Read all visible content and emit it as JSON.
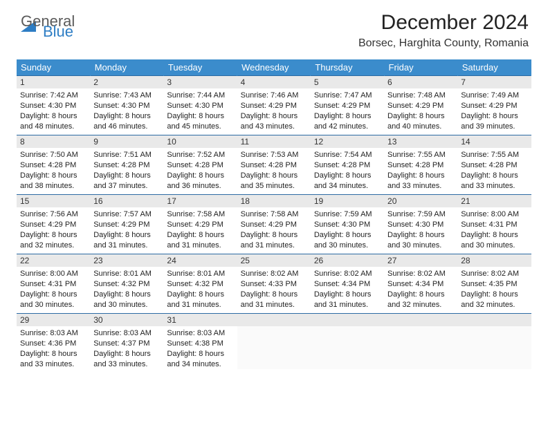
{
  "brand": {
    "line1": "General",
    "line2": "Blue"
  },
  "title": "December 2024",
  "location": "Borsec, Harghita County, Romania",
  "day_headers": [
    "Sunday",
    "Monday",
    "Tuesday",
    "Wednesday",
    "Thursday",
    "Friday",
    "Saturday"
  ],
  "colors": {
    "header_bg": "#3b8ccc",
    "header_text": "#ffffff",
    "row_border": "#2b6aa3",
    "daynum_bg": "#e9e9e9",
    "logo_gray": "#5a5a5a",
    "logo_blue": "#2d7dc4"
  },
  "weeks": [
    [
      {
        "n": "1",
        "sunrise": "Sunrise: 7:42 AM",
        "sunset": "Sunset: 4:30 PM",
        "day1": "Daylight: 8 hours",
        "day2": "and 48 minutes."
      },
      {
        "n": "2",
        "sunrise": "Sunrise: 7:43 AM",
        "sunset": "Sunset: 4:30 PM",
        "day1": "Daylight: 8 hours",
        "day2": "and 46 minutes."
      },
      {
        "n": "3",
        "sunrise": "Sunrise: 7:44 AM",
        "sunset": "Sunset: 4:30 PM",
        "day1": "Daylight: 8 hours",
        "day2": "and 45 minutes."
      },
      {
        "n": "4",
        "sunrise": "Sunrise: 7:46 AM",
        "sunset": "Sunset: 4:29 PM",
        "day1": "Daylight: 8 hours",
        "day2": "and 43 minutes."
      },
      {
        "n": "5",
        "sunrise": "Sunrise: 7:47 AM",
        "sunset": "Sunset: 4:29 PM",
        "day1": "Daylight: 8 hours",
        "day2": "and 42 minutes."
      },
      {
        "n": "6",
        "sunrise": "Sunrise: 7:48 AM",
        "sunset": "Sunset: 4:29 PM",
        "day1": "Daylight: 8 hours",
        "day2": "and 40 minutes."
      },
      {
        "n": "7",
        "sunrise": "Sunrise: 7:49 AM",
        "sunset": "Sunset: 4:29 PM",
        "day1": "Daylight: 8 hours",
        "day2": "and 39 minutes."
      }
    ],
    [
      {
        "n": "8",
        "sunrise": "Sunrise: 7:50 AM",
        "sunset": "Sunset: 4:28 PM",
        "day1": "Daylight: 8 hours",
        "day2": "and 38 minutes."
      },
      {
        "n": "9",
        "sunrise": "Sunrise: 7:51 AM",
        "sunset": "Sunset: 4:28 PM",
        "day1": "Daylight: 8 hours",
        "day2": "and 37 minutes."
      },
      {
        "n": "10",
        "sunrise": "Sunrise: 7:52 AM",
        "sunset": "Sunset: 4:28 PM",
        "day1": "Daylight: 8 hours",
        "day2": "and 36 minutes."
      },
      {
        "n": "11",
        "sunrise": "Sunrise: 7:53 AM",
        "sunset": "Sunset: 4:28 PM",
        "day1": "Daylight: 8 hours",
        "day2": "and 35 minutes."
      },
      {
        "n": "12",
        "sunrise": "Sunrise: 7:54 AM",
        "sunset": "Sunset: 4:28 PM",
        "day1": "Daylight: 8 hours",
        "day2": "and 34 minutes."
      },
      {
        "n": "13",
        "sunrise": "Sunrise: 7:55 AM",
        "sunset": "Sunset: 4:28 PM",
        "day1": "Daylight: 8 hours",
        "day2": "and 33 minutes."
      },
      {
        "n": "14",
        "sunrise": "Sunrise: 7:55 AM",
        "sunset": "Sunset: 4:28 PM",
        "day1": "Daylight: 8 hours",
        "day2": "and 33 minutes."
      }
    ],
    [
      {
        "n": "15",
        "sunrise": "Sunrise: 7:56 AM",
        "sunset": "Sunset: 4:29 PM",
        "day1": "Daylight: 8 hours",
        "day2": "and 32 minutes."
      },
      {
        "n": "16",
        "sunrise": "Sunrise: 7:57 AM",
        "sunset": "Sunset: 4:29 PM",
        "day1": "Daylight: 8 hours",
        "day2": "and 31 minutes."
      },
      {
        "n": "17",
        "sunrise": "Sunrise: 7:58 AM",
        "sunset": "Sunset: 4:29 PM",
        "day1": "Daylight: 8 hours",
        "day2": "and 31 minutes."
      },
      {
        "n": "18",
        "sunrise": "Sunrise: 7:58 AM",
        "sunset": "Sunset: 4:29 PM",
        "day1": "Daylight: 8 hours",
        "day2": "and 31 minutes."
      },
      {
        "n": "19",
        "sunrise": "Sunrise: 7:59 AM",
        "sunset": "Sunset: 4:30 PM",
        "day1": "Daylight: 8 hours",
        "day2": "and 30 minutes."
      },
      {
        "n": "20",
        "sunrise": "Sunrise: 7:59 AM",
        "sunset": "Sunset: 4:30 PM",
        "day1": "Daylight: 8 hours",
        "day2": "and 30 minutes."
      },
      {
        "n": "21",
        "sunrise": "Sunrise: 8:00 AM",
        "sunset": "Sunset: 4:31 PM",
        "day1": "Daylight: 8 hours",
        "day2": "and 30 minutes."
      }
    ],
    [
      {
        "n": "22",
        "sunrise": "Sunrise: 8:00 AM",
        "sunset": "Sunset: 4:31 PM",
        "day1": "Daylight: 8 hours",
        "day2": "and 30 minutes."
      },
      {
        "n": "23",
        "sunrise": "Sunrise: 8:01 AM",
        "sunset": "Sunset: 4:32 PM",
        "day1": "Daylight: 8 hours",
        "day2": "and 30 minutes."
      },
      {
        "n": "24",
        "sunrise": "Sunrise: 8:01 AM",
        "sunset": "Sunset: 4:32 PM",
        "day1": "Daylight: 8 hours",
        "day2": "and 31 minutes."
      },
      {
        "n": "25",
        "sunrise": "Sunrise: 8:02 AM",
        "sunset": "Sunset: 4:33 PM",
        "day1": "Daylight: 8 hours",
        "day2": "and 31 minutes."
      },
      {
        "n": "26",
        "sunrise": "Sunrise: 8:02 AM",
        "sunset": "Sunset: 4:34 PM",
        "day1": "Daylight: 8 hours",
        "day2": "and 31 minutes."
      },
      {
        "n": "27",
        "sunrise": "Sunrise: 8:02 AM",
        "sunset": "Sunset: 4:34 PM",
        "day1": "Daylight: 8 hours",
        "day2": "and 32 minutes."
      },
      {
        "n": "28",
        "sunrise": "Sunrise: 8:02 AM",
        "sunset": "Sunset: 4:35 PM",
        "day1": "Daylight: 8 hours",
        "day2": "and 32 minutes."
      }
    ],
    [
      {
        "n": "29",
        "sunrise": "Sunrise: 8:03 AM",
        "sunset": "Sunset: 4:36 PM",
        "day1": "Daylight: 8 hours",
        "day2": "and 33 minutes."
      },
      {
        "n": "30",
        "sunrise": "Sunrise: 8:03 AM",
        "sunset": "Sunset: 4:37 PM",
        "day1": "Daylight: 8 hours",
        "day2": "and 33 minutes."
      },
      {
        "n": "31",
        "sunrise": "Sunrise: 8:03 AM",
        "sunset": "Sunset: 4:38 PM",
        "day1": "Daylight: 8 hours",
        "day2": "and 34 minutes."
      },
      null,
      null,
      null,
      null
    ]
  ]
}
